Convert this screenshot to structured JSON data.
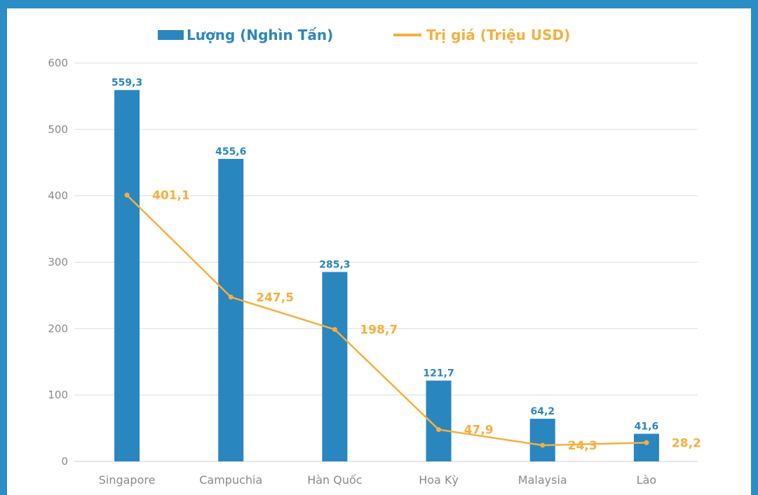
{
  "chart_data": {
    "type": "bar",
    "categories": [
      "Singapore",
      "Campuchia",
      "Hàn Quốc",
      "Hoa Kỳ",
      "Malaysia",
      "Lào"
    ],
    "series": [
      {
        "name": "Lượng (Nghìn Tấn)",
        "type": "bar",
        "color": "#2a86bf",
        "values": [
          559.3,
          455.6,
          285.3,
          121.7,
          64.2,
          41.6
        ],
        "labels": [
          "559,3",
          "455,6",
          "285,3",
          "121,7",
          "64,2",
          "41,6"
        ]
      },
      {
        "name": "Trị giá (Triệu USD)",
        "type": "line",
        "color": "#f4b03e",
        "values": [
          401.1,
          247.5,
          198.7,
          47.9,
          24.3,
          28.2
        ],
        "labels": [
          "401,1",
          "247,5",
          "198,7",
          "47,9",
          "24,3",
          "28,2"
        ]
      }
    ],
    "yticks": [
      "0",
      "100",
      "200",
      "300",
      "400",
      "500",
      "600"
    ],
    "ylim": [
      0,
      600
    ],
    "grid": true,
    "legend": "top-center",
    "title": "",
    "xlabel": "",
    "ylabel": ""
  },
  "colors": {
    "background_border": "#2a8dc6",
    "bar": "#2a86bf",
    "line": "#f4b03e",
    "grid": "#dedede"
  }
}
